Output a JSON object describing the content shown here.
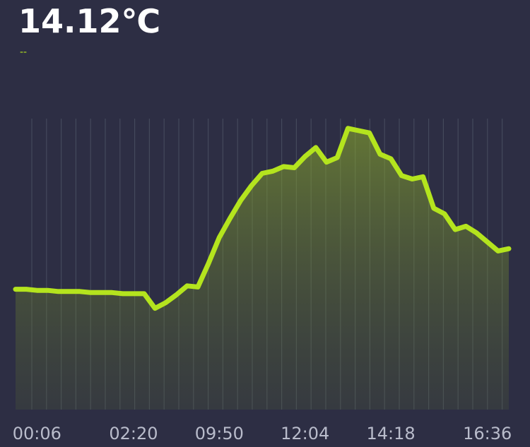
{
  "chart_data": {
    "type": "line",
    "title": "14.12℃",
    "categories": [
      null,
      null,
      "00:06",
      null,
      null,
      null,
      null,
      null,
      null,
      null,
      null,
      "02:20",
      null,
      null,
      null,
      null,
      null,
      null,
      null,
      "09:50",
      null,
      null,
      null,
      null,
      null,
      null,
      null,
      "12:04",
      null,
      null,
      null,
      null,
      null,
      null,
      null,
      "14:18",
      null,
      null,
      null,
      null,
      null,
      null,
      null,
      null,
      "16:36",
      null,
      null
    ],
    "series": [
      {
        "name": "--",
        "color": "#b4e41e",
        "values": [
          10.7,
          10.7,
          10.6,
          10.6,
          10.5,
          10.5,
          10.5,
          10.4,
          10.4,
          10.4,
          10.3,
          10.3,
          10.3,
          9.0,
          9.5,
          10.2,
          11.0,
          10.9,
          13.0,
          15.3,
          17.0,
          18.6,
          19.9,
          21.0,
          21.2,
          21.6,
          21.5,
          22.5,
          23.3,
          22.0,
          22.4,
          25.0,
          24.8,
          24.6,
          22.7,
          22.3,
          20.8,
          20.5,
          20.7,
          17.9,
          17.4,
          16.0,
          16.3,
          15.7,
          14.9,
          14.1,
          14.3
        ]
      }
    ],
    "ylim": [
      0,
      28
    ],
    "grid": true,
    "area": true
  }
}
